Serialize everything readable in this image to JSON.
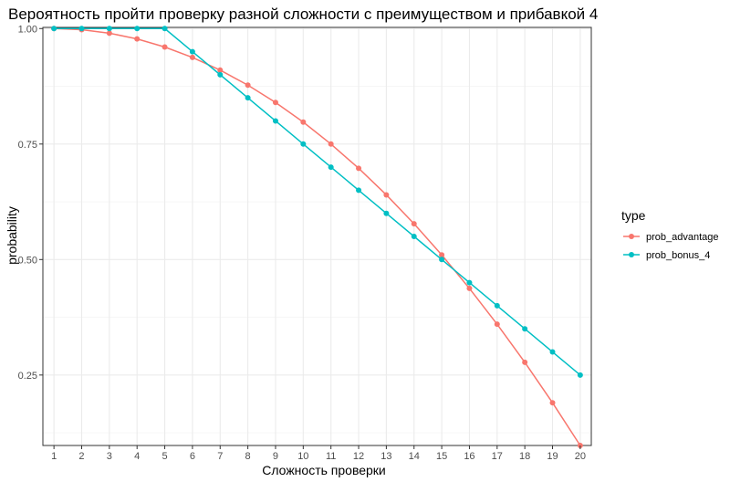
{
  "chart_data": {
    "type": "line",
    "title": "Вероятность пройти проверку разной сложности с преимуществом и прибавкой 4",
    "xlabel": "Сложность проверки",
    "ylabel": "probability",
    "x": [
      1,
      2,
      3,
      4,
      5,
      6,
      7,
      8,
      9,
      10,
      11,
      12,
      13,
      14,
      15,
      16,
      17,
      18,
      19,
      20
    ],
    "xlim": [
      0.6,
      20.4
    ],
    "ylim": [
      0.0975,
      1.0025
    ],
    "yticks": [
      0.25,
      0.5,
      0.75,
      1.0
    ],
    "ytick_labels": [
      "0.25",
      "0.50",
      "0.75",
      "1.00"
    ],
    "grid": true,
    "legend": {
      "title": "type",
      "position": "right"
    },
    "series": [
      {
        "name": "prob_advantage",
        "color": "#F8766D",
        "values": [
          1.0,
          0.9975,
          0.99,
          0.9775,
          0.96,
          0.9375,
          0.91,
          0.8775,
          0.84,
          0.7975,
          0.75,
          0.6975,
          0.64,
          0.5775,
          0.51,
          0.4375,
          0.36,
          0.2775,
          0.19,
          0.0975
        ]
      },
      {
        "name": "prob_bonus_4",
        "color": "#00BFC4",
        "values": [
          1.0,
          1.0,
          1.0,
          1.0,
          1.0,
          0.95,
          0.9,
          0.85,
          0.8,
          0.75,
          0.7,
          0.65,
          0.6,
          0.55,
          0.5,
          0.45,
          0.4,
          0.35,
          0.3,
          0.25
        ]
      }
    ]
  }
}
